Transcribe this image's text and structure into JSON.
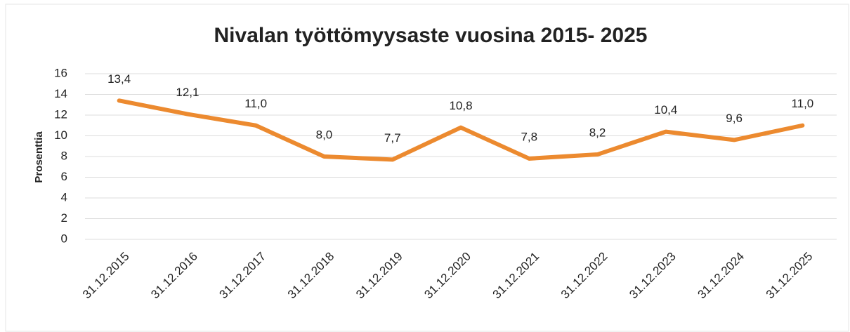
{
  "chart_data": {
    "type": "line",
    "title": "Nivalan työttömyysaste vuosina 2015- 2025",
    "y_label": "Prosenttia",
    "categories": [
      "31.12.2015",
      "31.12.2016",
      "31.12.2017",
      "31.12.2018",
      "31.12.2019",
      "31.12.2020",
      "31.12.2021",
      "31.12.2022",
      "31.12.2023",
      "31.12.2024",
      "31.12.2025"
    ],
    "series": [
      {
        "name": "Prosenttia",
        "color": "#ec8a2f",
        "values": [
          13.4,
          12.1,
          11.0,
          8.0,
          7.7,
          10.8,
          7.8,
          8.2,
          10.4,
          9.6,
          11.0
        ],
        "value_labels": [
          "13,4",
          "12,1",
          "11,0",
          "8,0",
          "7,7",
          "10,8",
          "7,8",
          "8,2",
          "10,4",
          "9,6",
          "11,0"
        ]
      }
    ],
    "ylim": [
      0,
      16
    ],
    "yticks": [
      0,
      2,
      4,
      6,
      8,
      10,
      12,
      14,
      16
    ],
    "grid": true
  }
}
